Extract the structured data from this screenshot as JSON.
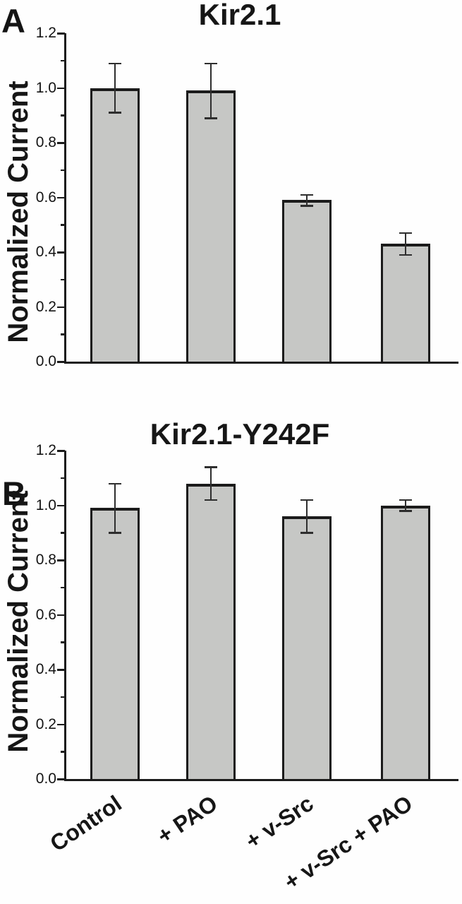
{
  "figure": {
    "panels": [
      {
        "letter": "A"
      },
      {
        "letter": "B"
      }
    ]
  },
  "chart_data": [
    {
      "type": "bar",
      "panel": "A",
      "title": "Kir2.1",
      "ylabel": "Normalized Current",
      "xlabel": "",
      "ylim": [
        0.0,
        1.2
      ],
      "ytick_step": 0.2,
      "minor_tick_step": 0.1,
      "grid": false,
      "legend": "none",
      "categories": [
        "Control",
        "+ PAO",
        "+ v-Src",
        "+ v-Src + PAO"
      ],
      "values": [
        1.0,
        0.99,
        0.59,
        0.43
      ],
      "errors": [
        0.09,
        0.1,
        0.02,
        0.04
      ],
      "bar_fill": "#c6c7c5",
      "bar_edge": "#1b1b1b"
    },
    {
      "type": "bar",
      "panel": "B",
      "title": "Kir2.1-Y242F",
      "ylabel": "Normalized Current",
      "xlabel": "",
      "ylim": [
        0.0,
        1.2
      ],
      "ytick_step": 0.2,
      "minor_tick_step": 0.1,
      "grid": false,
      "legend": "none",
      "categories": [
        "Control",
        "+ PAO",
        "+ v-Src",
        "+ v-Src + PAO"
      ],
      "values": [
        0.99,
        1.08,
        0.96,
        1.0
      ],
      "errors": [
        0.09,
        0.06,
        0.06,
        0.02
      ],
      "bar_fill": "#c6c7c5",
      "bar_edge": "#1b1b1b"
    }
  ],
  "colors": {
    "background": "#ffffff",
    "axis": "#1b1b1b",
    "text": "#141414",
    "error_bar": "#2e2e2e"
  }
}
